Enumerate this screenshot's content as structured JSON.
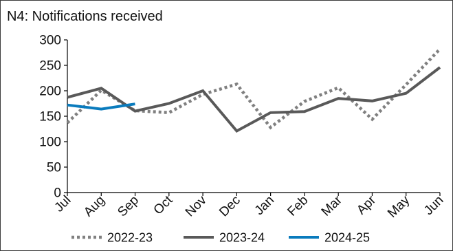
{
  "chart_data": {
    "type": "line",
    "title": "N4: Notifications received",
    "categories": [
      "Jul",
      "Aug",
      "Sep",
      "Oct",
      "Nov",
      "Dec",
      "Jan",
      "Feb",
      "Mar",
      "Apr",
      "May",
      "Jun"
    ],
    "ylim": [
      0,
      300
    ],
    "yticks": [
      0,
      50,
      100,
      150,
      200,
      250,
      300
    ],
    "grid": false,
    "legend_position": "bottom",
    "series": [
      {
        "name": "2022-23",
        "style": "dotted",
        "color": "#808080",
        "values": [
          137,
          201,
          161,
          157,
          193,
          213,
          128,
          179,
          206,
          144,
          212,
          282
        ]
      },
      {
        "name": "2023-24",
        "style": "solid",
        "color": "#595959",
        "values": [
          187,
          205,
          160,
          175,
          200,
          121,
          157,
          159,
          185,
          180,
          195,
          246
        ]
      },
      {
        "name": "2024-25",
        "style": "solid",
        "color": "#0a7bbd",
        "values": [
          172,
          164,
          174,
          null,
          null,
          null,
          null,
          null,
          null,
          null,
          null,
          null
        ]
      }
    ]
  }
}
